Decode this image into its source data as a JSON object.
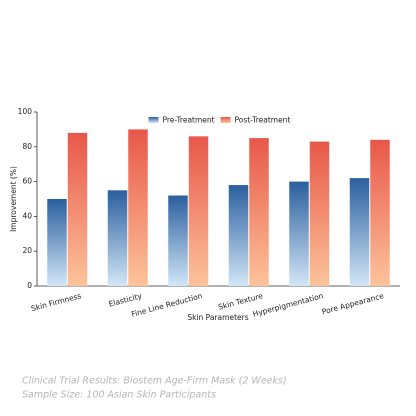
{
  "chart_data": {
    "type": "bar",
    "categories": [
      "Skin Firmness",
      "Elasticity",
      "Fine Line Reduction",
      "Skin Texture",
      "Hyperpigmentation",
      "Pore Appearance"
    ],
    "series": [
      {
        "name": "Pre-Treatment",
        "color": "#2a5f9e",
        "color_end": "#d2e6f7",
        "values": [
          50,
          55,
          52,
          58,
          60,
          62
        ]
      },
      {
        "name": "Post-Treatment",
        "color": "#e8574a",
        "color_end": "#fdc39a",
        "values": [
          88,
          90,
          86,
          85,
          83,
          84
        ]
      }
    ],
    "x_label": "Skin Parameters",
    "y_label": "Improvement (%)",
    "ylim": [
      0,
      100
    ],
    "yticks": [
      0,
      20,
      40,
      60,
      80,
      100
    ],
    "grid": false,
    "legend": "upper center",
    "caption": [
      "Clinical Trial Results: Biostem Age-Firm Mask (2 Weeks)",
      "Sample Size: 100 Asian Skin Participants"
    ]
  }
}
